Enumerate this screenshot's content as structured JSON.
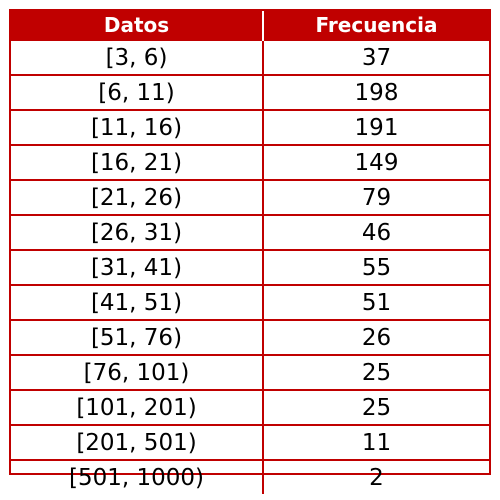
{
  "colors": {
    "header_bg": "#c00000",
    "header_text": "#ffffff",
    "border": "#c00000",
    "cell_text": "#000000"
  },
  "chart_data": {
    "type": "table",
    "columns": [
      "Datos",
      "Frecuencia"
    ],
    "rows": [
      [
        "[3, 6)",
        "37"
      ],
      [
        "[6, 11)",
        "198"
      ],
      [
        "[11, 16)",
        "191"
      ],
      [
        "[16, 21)",
        "149"
      ],
      [
        "[21, 26)",
        "79"
      ],
      [
        "[26, 31)",
        "46"
      ],
      [
        "[31, 41)",
        "55"
      ],
      [
        "[41, 51)",
        "51"
      ],
      [
        "[51, 76)",
        "26"
      ],
      [
        "[76, 101)",
        "25"
      ],
      [
        "[101, 201)",
        "25"
      ],
      [
        "[201, 501)",
        "11"
      ],
      [
        "[501, 1000)",
        "2"
      ]
    ]
  }
}
